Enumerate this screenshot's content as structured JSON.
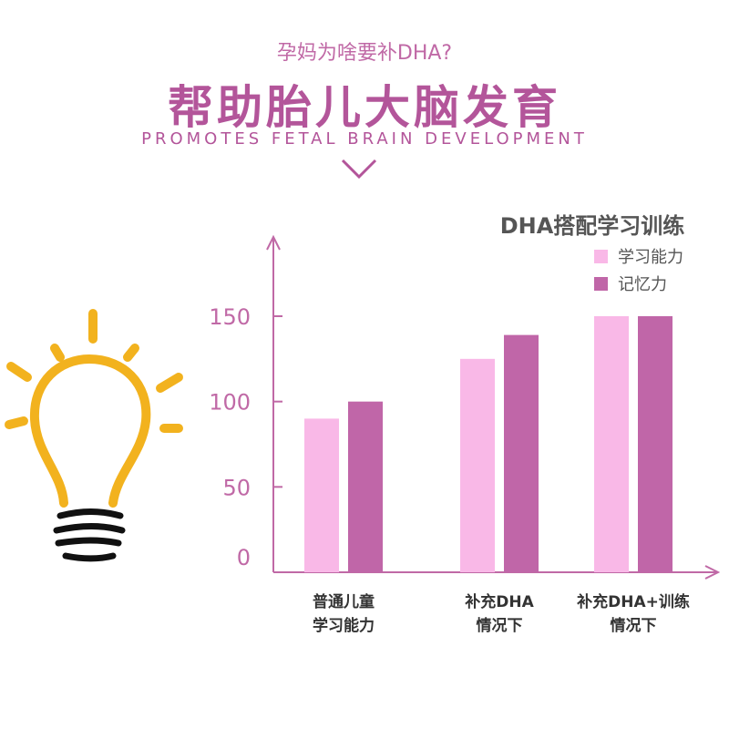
{
  "header": {
    "subtitle": "孕妈为啥要补DHA?",
    "title": "帮助胎儿大脑发育",
    "english_title": "PROMOTES FETAL BRAIN DEVELOPMENT",
    "accent_color": "#b3559a"
  },
  "illustration": {
    "icon": "lightbulb-icon",
    "color": "#f2b21e"
  },
  "chart_data": {
    "type": "bar",
    "title": "DHA搭配学习训练",
    "categories": [
      [
        "普通儿童",
        "学习能力"
      ],
      [
        "补充DHA",
        "情况下"
      ],
      [
        "补充DHA+训练",
        "情况下"
      ]
    ],
    "series": [
      {
        "name": "学习能力",
        "color": "#f9b8e7",
        "values": [
          90,
          125,
          150
        ]
      },
      {
        "name": "记忆力",
        "color": "#c066a8",
        "values": [
          100,
          139,
          150
        ]
      }
    ],
    "y_ticks": [
      0,
      50,
      100,
      150
    ],
    "ylim": [
      0,
      150
    ],
    "legend_position": "top-right",
    "grid": false
  }
}
